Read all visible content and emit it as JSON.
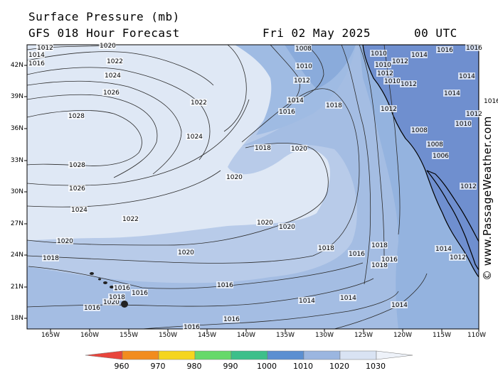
{
  "header": {
    "title": "Surface Pressure (mb)",
    "model": "GFS 018 Hour Forecast",
    "date": "Fri 02 May 2025",
    "time": "00 UTC"
  },
  "credit": "© www.PassageWeather.com",
  "axes": {
    "lat_labels": [
      "42N",
      "39N",
      "36N",
      "33N",
      "30N",
      "27N",
      "24N",
      "21N",
      "18N"
    ],
    "lon_labels": [
      "165W",
      "160W",
      "155W",
      "150W",
      "145W",
      "140W",
      "135W",
      "130W",
      "125W",
      "120W",
      "115W",
      "110W"
    ]
  },
  "colorbar": {
    "labels": [
      "960",
      "970",
      "980",
      "990",
      "1000",
      "1010",
      "1020",
      "1030"
    ],
    "colors": [
      "#e8453c",
      "#f28c1e",
      "#f5d51e",
      "#66d96a",
      "#3dbf8a",
      "#5b8fd1",
      "#9bb6e0",
      "#d9e3f3"
    ]
  },
  "fill_colors": {
    "above_1020": "#dfe8f5",
    "band_1016_1020": "#b9cdea",
    "band_1012_1016": "#9fbbe3",
    "below_1012": "#86a9db",
    "land": "#6e8fd0"
  },
  "contour_labels": [
    {
      "text": "1012",
      "id": "c1"
    },
    {
      "text": "1014",
      "id": "c2"
    },
    {
      "text": "1016",
      "id": "c3"
    },
    {
      "text": "1020",
      "id": "c4"
    },
    {
      "text": "1022",
      "id": "c5"
    },
    {
      "text": "1024",
      "id": "c6"
    },
    {
      "text": "1026",
      "id": "c7"
    },
    {
      "text": "1028",
      "id": "c8"
    },
    {
      "text": "1028",
      "id": "c9"
    },
    {
      "text": "1026",
      "id": "c10"
    },
    {
      "text": "1024",
      "id": "c11"
    },
    {
      "text": "1022",
      "id": "c12"
    },
    {
      "text": "1020",
      "id": "c13"
    },
    {
      "text": "1018",
      "id": "c14"
    },
    {
      "text": "1016",
      "id": "c15"
    },
    {
      "text": "1020",
      "id": "c16"
    },
    {
      "text": "1022",
      "id": "c17"
    },
    {
      "text": "1024",
      "id": "c18"
    },
    {
      "text": "1008",
      "id": "c19"
    },
    {
      "text": "1010",
      "id": "c20"
    },
    {
      "text": "1012",
      "id": "c21"
    },
    {
      "text": "1014",
      "id": "c22"
    },
    {
      "text": "1016",
      "id": "c23"
    },
    {
      "text": "1018",
      "id": "c24"
    },
    {
      "text": "1018",
      "id": "c25"
    },
    {
      "text": "1020",
      "id": "c26"
    },
    {
      "text": "1020",
      "id": "c27"
    },
    {
      "text": "1020",
      "id": "c28"
    },
    {
      "text": "1020",
      "id": "c29"
    },
    {
      "text": "1018",
      "id": "c30"
    },
    {
      "text": "1016",
      "id": "c31"
    },
    {
      "text": "1016",
      "id": "c32"
    },
    {
      "text": "1016",
      "id": "c33"
    },
    {
      "text": "1014",
      "id": "c34"
    },
    {
      "text": "1014",
      "id": "c35"
    },
    {
      "text": "1014",
      "id": "c36"
    },
    {
      "text": "1012",
      "id": "c37"
    },
    {
      "text": "1018",
      "id": "c38"
    },
    {
      "text": "1018",
      "id": "c39"
    },
    {
      "text": "1016",
      "id": "c40"
    },
    {
      "text": "1016",
      "id": "c41"
    },
    {
      "text": "1016",
      "id": "c42"
    },
    {
      "text": "1016",
      "id": "c43"
    },
    {
      "text": "1020",
      "id": "c44"
    },
    {
      "text": "1018",
      "id": "c45"
    },
    {
      "text": "1010",
      "id": "c46"
    },
    {
      "text": "1012",
      "id": "c47"
    },
    {
      "text": "1014",
      "id": "c48"
    },
    {
      "text": "1012",
      "id": "c49"
    },
    {
      "text": "1010",
      "id": "c50"
    },
    {
      "text": "1008",
      "id": "c51"
    },
    {
      "text": "1006",
      "id": "c52"
    },
    {
      "text": "1008",
      "id": "c53"
    },
    {
      "text": "1010",
      "id": "c54"
    },
    {
      "text": "1012",
      "id": "c55"
    },
    {
      "text": "1014",
      "id": "c56"
    },
    {
      "text": "1016",
      "id": "c57"
    },
    {
      "text": "1012",
      "id": "c58"
    },
    {
      "text": "1010",
      "id": "c59"
    },
    {
      "text": "1014",
      "id": "c60"
    },
    {
      "text": "1012",
      "id": "c61"
    },
    {
      "text": "1014",
      "id": "c62"
    },
    {
      "text": "1016",
      "id": "c63"
    },
    {
      "text": "1016",
      "id": "c64"
    },
    {
      "text": "1012",
      "id": "c65"
    }
  ]
}
